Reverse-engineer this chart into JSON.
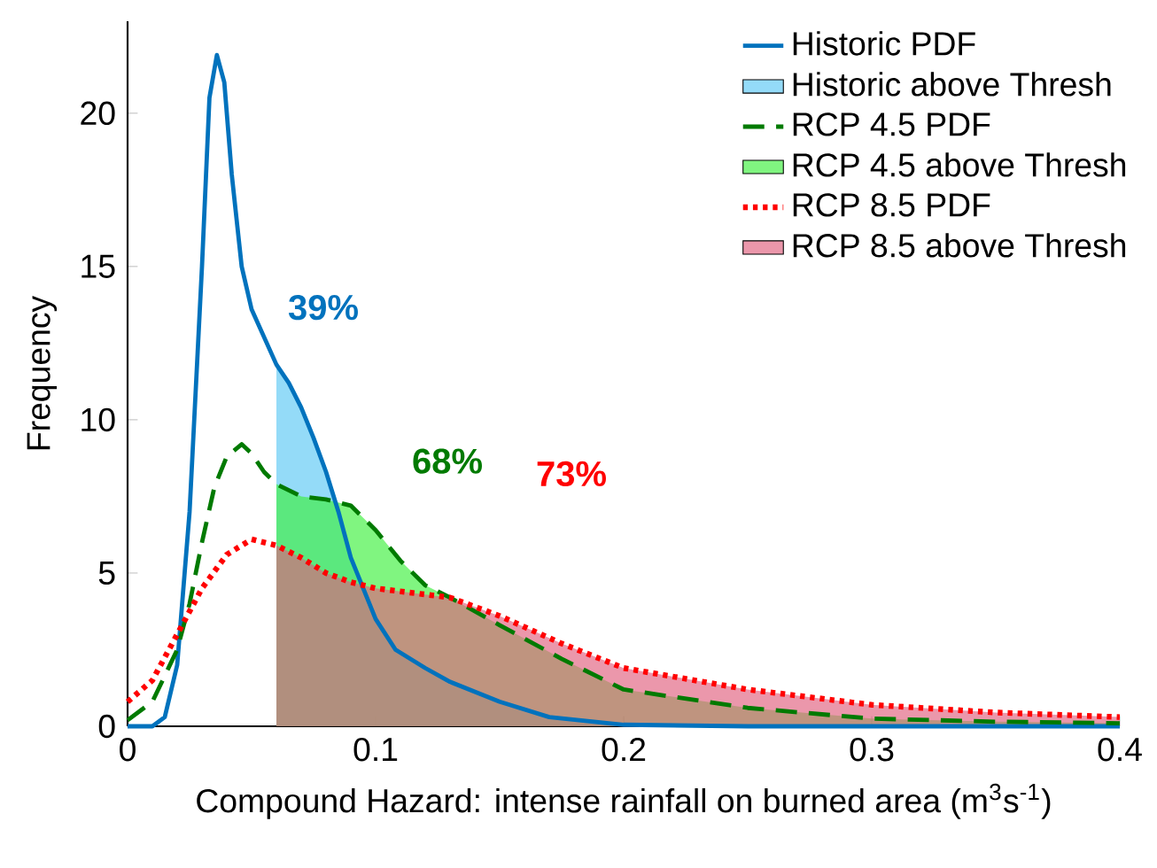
{
  "chart_data": {
    "type": "line",
    "xlabel": "Compound Hazard: intense rainfall on burned area (m$^{3}$s$^{-1}$)",
    "ylabel": "Frequency",
    "xlim": [
      0,
      0.4
    ],
    "ylim": [
      0,
      23
    ],
    "xticks": [
      0,
      0.1,
      0.2,
      0.3,
      0.4
    ],
    "yticks": [
      0,
      5,
      10,
      15,
      20
    ],
    "legend": "top right",
    "marker": "none",
    "grid": false,
    "annotations": [
      "39%",
      "68%",
      "73%"
    ],
    "series": [
      {
        "name": "Historic PDF",
        "line_style": "solid",
        "color": "#0072bd",
        "x": [
          0,
          0.01,
          0.015,
          0.02,
          0.025,
          0.03,
          0.033,
          0.036,
          0.039,
          0.042,
          0.046,
          0.05,
          0.055,
          0.06,
          0.065,
          0.07,
          0.075,
          0.08,
          0.085,
          0.09,
          0.095,
          0.1,
          0.108,
          0.12,
          0.13,
          0.15,
          0.17,
          0.2,
          0.25,
          0.4
        ],
        "values": [
          0,
          0,
          0.3,
          2,
          7,
          15,
          20.5,
          21.9,
          21,
          18,
          15,
          13.6,
          12.7,
          11.8,
          11.2,
          10.4,
          9.4,
          8.3,
          7,
          5.5,
          4.5,
          3.5,
          2.5,
          1.9,
          1.45,
          0.8,
          0.3,
          0.05,
          0,
          0
        ]
      },
      {
        "name": "Historic above Thresh",
        "type": "area",
        "color": "#5bc8f5",
        "x": [
          0.06,
          0.065,
          0.07,
          0.075,
          0.08,
          0.085,
          0.09,
          0.095,
          0.1,
          0.108,
          0.12,
          0.13,
          0.15,
          0.17,
          0.2,
          0.25,
          0.4
        ],
        "values": [
          11.8,
          11.2,
          10.4,
          9.4,
          8.3,
          7,
          5.5,
          4.5,
          3.5,
          2.5,
          1.9,
          1.45,
          0.8,
          0.3,
          0.05,
          0,
          0
        ]
      },
      {
        "name": "RCP 4.5 PDF",
        "line_style": "dashed",
        "color": "#007a00",
        "x": [
          0,
          0.01,
          0.02,
          0.025,
          0.03,
          0.035,
          0.04,
          0.046,
          0.05,
          0.055,
          0.06,
          0.065,
          0.07,
          0.08,
          0.09,
          0.1,
          0.11,
          0.12,
          0.13,
          0.15,
          0.175,
          0.2,
          0.25,
          0.3,
          0.35,
          0.4
        ],
        "values": [
          0.2,
          0.8,
          2.5,
          4,
          6,
          7.8,
          8.8,
          9.2,
          8.9,
          8.3,
          7.9,
          7.7,
          7.5,
          7.4,
          7.2,
          6.4,
          5.4,
          4.6,
          4.2,
          3.3,
          2.2,
          1.2,
          0.6,
          0.25,
          0.15,
          0.1
        ]
      },
      {
        "name": "RCP 4.5 above Thresh",
        "type": "area",
        "color": "#3cf03c",
        "x": [
          0.06,
          0.065,
          0.07,
          0.08,
          0.09,
          0.1,
          0.11,
          0.12,
          0.13,
          0.15,
          0.175,
          0.2,
          0.25,
          0.3,
          0.35,
          0.4
        ],
        "values": [
          7.9,
          7.7,
          7.5,
          7.4,
          7.2,
          6.4,
          5.4,
          4.6,
          4.2,
          3.3,
          2.2,
          1.2,
          0.6,
          0.25,
          0.15,
          0.1
        ]
      },
      {
        "name": "RCP 8.5 PDF",
        "line_style": "dotted",
        "color": "#ff0000",
        "x": [
          0,
          0.01,
          0.02,
          0.03,
          0.04,
          0.05,
          0.06,
          0.07,
          0.08,
          0.09,
          0.1,
          0.11,
          0.12,
          0.13,
          0.15,
          0.175,
          0.2,
          0.25,
          0.3,
          0.35,
          0.4
        ],
        "values": [
          0.8,
          1.5,
          3,
          4.5,
          5.6,
          6.1,
          5.9,
          5.5,
          5,
          4.7,
          4.5,
          4.4,
          4.3,
          4.2,
          3.6,
          2.7,
          1.9,
          1.2,
          0.7,
          0.45,
          0.3
        ]
      },
      {
        "name": "RCP 8.5 above Thresh",
        "type": "area",
        "color": "#e0607e",
        "x": [
          0.06,
          0.07,
          0.08,
          0.09,
          0.1,
          0.11,
          0.12,
          0.13,
          0.15,
          0.175,
          0.2,
          0.25,
          0.3,
          0.35,
          0.4
        ],
        "values": [
          5.9,
          5.5,
          5,
          4.7,
          4.5,
          4.4,
          4.3,
          4.2,
          3.6,
          2.7,
          1.9,
          1.2,
          0.7,
          0.45,
          0.3
        ]
      }
    ]
  }
}
